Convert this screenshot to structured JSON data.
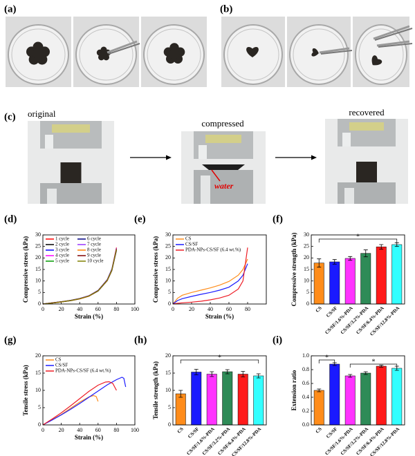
{
  "panels": {
    "a": "(a)",
    "b": "(b)",
    "c": "(c)",
    "original": "original",
    "compressed": "compressed",
    "recovered": "recovered",
    "water": "water"
  },
  "chart_data": [
    {
      "type": "line",
      "label": "(d)",
      "x_label": "Strain (%)",
      "y_label": "Compressive stress (kPa)",
      "xlim": [
        0,
        100
      ],
      "xticks": [
        0,
        20,
        40,
        60,
        80,
        100
      ],
      "ylim": [
        0,
        30
      ],
      "yticks": [
        0,
        5,
        10,
        15,
        20,
        25,
        30
      ],
      "legend": "upper left",
      "legend_columns": 2,
      "x": [
        0,
        10,
        20,
        30,
        40,
        50,
        60,
        70,
        75,
        80
      ],
      "series": [
        {
          "name": "1 cycle",
          "color": "#ff0000",
          "values": [
            0,
            0.4,
            0.9,
            1.5,
            2.3,
            3.5,
            5.8,
            10.5,
            15,
            24.5
          ]
        },
        {
          "name": "2 cycle",
          "color": "#000000",
          "values": [
            0,
            0.4,
            0.9,
            1.4,
            2.2,
            3.4,
            5.6,
            10.2,
            14.5,
            23.5
          ]
        },
        {
          "name": "3 cycle",
          "color": "#0000ff",
          "values": [
            0,
            0.5,
            1,
            1.6,
            2.4,
            3.6,
            5.9,
            10.6,
            15.2,
            24
          ]
        },
        {
          "name": "4 cycle",
          "color": "#ff00ff",
          "values": [
            0,
            0.4,
            0.9,
            1.5,
            2.3,
            3.5,
            5.7,
            10.3,
            14.8,
            23.8
          ]
        },
        {
          "name": "5 cycle",
          "color": "#009900",
          "values": [
            0,
            0.5,
            1,
            1.6,
            2.4,
            3.5,
            5.8,
            10.4,
            14.9,
            23.5
          ]
        },
        {
          "name": "6 cycle",
          "color": "#000080",
          "values": [
            0,
            0.4,
            0.9,
            1.5,
            2.3,
            3.4,
            5.6,
            10.1,
            14.6,
            23.2
          ]
        },
        {
          "name": "7 cycle",
          "color": "#9933ff",
          "values": [
            0,
            0.5,
            1,
            1.6,
            2.4,
            3.6,
            5.8,
            10.5,
            15,
            24.2
          ]
        },
        {
          "name": "8 cycle",
          "color": "#ff8000",
          "values": [
            0,
            0.4,
            0.9,
            1.5,
            2.2,
            3.4,
            5.7,
            10.2,
            14.7,
            23.6
          ]
        },
        {
          "name": "9 cycle",
          "color": "#800000",
          "values": [
            0,
            0.5,
            1,
            1.5,
            2.3,
            3.5,
            5.8,
            10.4,
            14.9,
            23.9
          ]
        },
        {
          "name": "10 cycle",
          "color": "#808000",
          "values": [
            0,
            0.4,
            0.9,
            1.5,
            2.3,
            3.5,
            5.7,
            10.3,
            14.8,
            23.7
          ]
        }
      ]
    },
    {
      "type": "line",
      "label": "(e)",
      "x_label": "Strain (%)",
      "y_label": "Compressive stress (kPa)",
      "xlim": [
        0,
        100
      ],
      "xticks": [
        0,
        20,
        40,
        60,
        80
      ],
      "ylim": [
        0,
        30
      ],
      "yticks": [
        0,
        5,
        10,
        15,
        20,
        25,
        30
      ],
      "legend": "upper left",
      "legend_columns": 1,
      "x": [
        0,
        5,
        10,
        20,
        30,
        40,
        50,
        60,
        70,
        75,
        80
      ],
      "series": [
        {
          "name": "CS",
          "color": "#ff8c1a",
          "values": [
            0,
            2.5,
            3.8,
            5,
            6,
            7,
            8.2,
            9.8,
            12.5,
            15,
            19.5
          ]
        },
        {
          "name": "CS/SF",
          "color": "#1a1aff",
          "values": [
            0,
            1.5,
            2.3,
            3.3,
            4.2,
            5,
            6,
            7.3,
            10,
            12.5,
            17.5
          ]
        },
        {
          "name": "PDA-NPs-CS/SF (6.4 wt.%)",
          "color": "#ee1c25",
          "values": [
            0,
            0.3,
            0.5,
            0.8,
            1.2,
            1.8,
            2.6,
            3.8,
            6.5,
            10,
            24.5
          ]
        }
      ]
    },
    {
      "type": "bar",
      "label": "(f)",
      "y_label": "Compressive strength (kPa)",
      "ylim": [
        0,
        30
      ],
      "yticks": [
        0,
        5,
        10,
        15,
        20,
        25,
        30
      ],
      "categories": [
        "CS",
        "CS/SF",
        "CS/SF/1.6%-PDA",
        "CS/SF/3.2%-PDA",
        "CS/SF/6.4%-PDA",
        "CS/SF/12.8%-PDA"
      ],
      "values": [
        17.8,
        18.3,
        19.8,
        22,
        24.8,
        25.8
      ],
      "errors": [
        1.8,
        1,
        0.8,
        1.5,
        1,
        0.8
      ],
      "colors": [
        "#ff8c1a",
        "#1a1aff",
        "#ff33ff",
        "#2e8b57",
        "#ff1a1a",
        "#33ffff"
      ],
      "annotations": [
        "*"
      ]
    },
    {
      "type": "line",
      "label": "(g)",
      "x_label": "Strain (%)",
      "y_label": "Tensile stress (kPa)",
      "xlim": [
        0,
        100
      ],
      "xticks": [
        0,
        20,
        40,
        60,
        80,
        100
      ],
      "ylim": [
        0,
        20
      ],
      "yticks": [
        0,
        5,
        10,
        15,
        20
      ],
      "legend": "upper left",
      "legend_columns": 1,
      "series": [
        {
          "name": "CS",
          "color": "#ff8c1a",
          "x": [
            0,
            10,
            20,
            30,
            40,
            50,
            55,
            58,
            60
          ],
          "values": [
            0,
            1.5,
            3,
            4.8,
            6.6,
            8.1,
            8.5,
            8.2,
            6.8
          ]
        },
        {
          "name": "CS/SF",
          "color": "#1a1aff",
          "x": [
            0,
            10,
            20,
            30,
            40,
            50,
            60,
            70,
            80,
            86,
            88,
            90
          ],
          "values": [
            0,
            1.4,
            2.9,
            4.5,
            6.2,
            8,
            9.8,
            11.6,
            13.1,
            13.8,
            13.5,
            11
          ]
        },
        {
          "name": "PDA-NPs-CS/SF (6.4 wt.%)",
          "color": "#ee1c25",
          "x": [
            0,
            10,
            20,
            30,
            40,
            50,
            60,
            68,
            72,
            76,
            80
          ],
          "values": [
            0,
            1.7,
            3.5,
            5.5,
            7.6,
            9.7,
            11.5,
            12.4,
            12.5,
            12,
            10
          ]
        }
      ]
    },
    {
      "type": "bar",
      "label": "(h)",
      "y_label": "Tensile strength (kPa)",
      "ylim": [
        0,
        20
      ],
      "yticks": [
        0,
        5,
        10,
        15,
        20
      ],
      "categories": [
        "CS",
        "CS/SF",
        "CS/SF/1.6%-PDA",
        "CS/SF/3.2%-PDA",
        "CS/SF/6.4%-PDA",
        "CS/SF/12.8%-PDA"
      ],
      "values": [
        9,
        15.3,
        14.7,
        15.4,
        14.7,
        14.2
      ],
      "errors": [
        1,
        0.8,
        0.7,
        0.6,
        0.8,
        0.6
      ],
      "colors": [
        "#ff8c1a",
        "#1a1aff",
        "#ff33ff",
        "#2e8b57",
        "#ff1a1a",
        "#33ffff"
      ],
      "annotations": [
        "*"
      ]
    },
    {
      "type": "bar",
      "label": "(i)",
      "y_label": "Extension ratio",
      "ylim": [
        0,
        1
      ],
      "yticks": [
        {
          "value": 0,
          "label": "0.0"
        },
        0.2,
        0.4,
        0.6,
        0.8,
        {
          "value": 1,
          "label": "1.0"
        }
      ],
      "categories": [
        "CS",
        "CS/SF",
        "CS/SF/1.6%-PDA",
        "CS/SF/3.2%-PDA",
        "CS/SF/6.4%-PDA",
        "CS/SF/12.8%-PDA"
      ],
      "values": [
        0.5,
        0.88,
        0.71,
        0.75,
        0.85,
        0.82
      ],
      "errors": [
        0.02,
        0.02,
        0.02,
        0.02,
        0.015,
        0.03
      ],
      "colors": [
        "#ff8c1a",
        "#1a1aff",
        "#ff33ff",
        "#2e8b57",
        "#ff1a1a",
        "#33ffff"
      ],
      "annotations": [
        "*",
        "*"
      ]
    }
  ]
}
